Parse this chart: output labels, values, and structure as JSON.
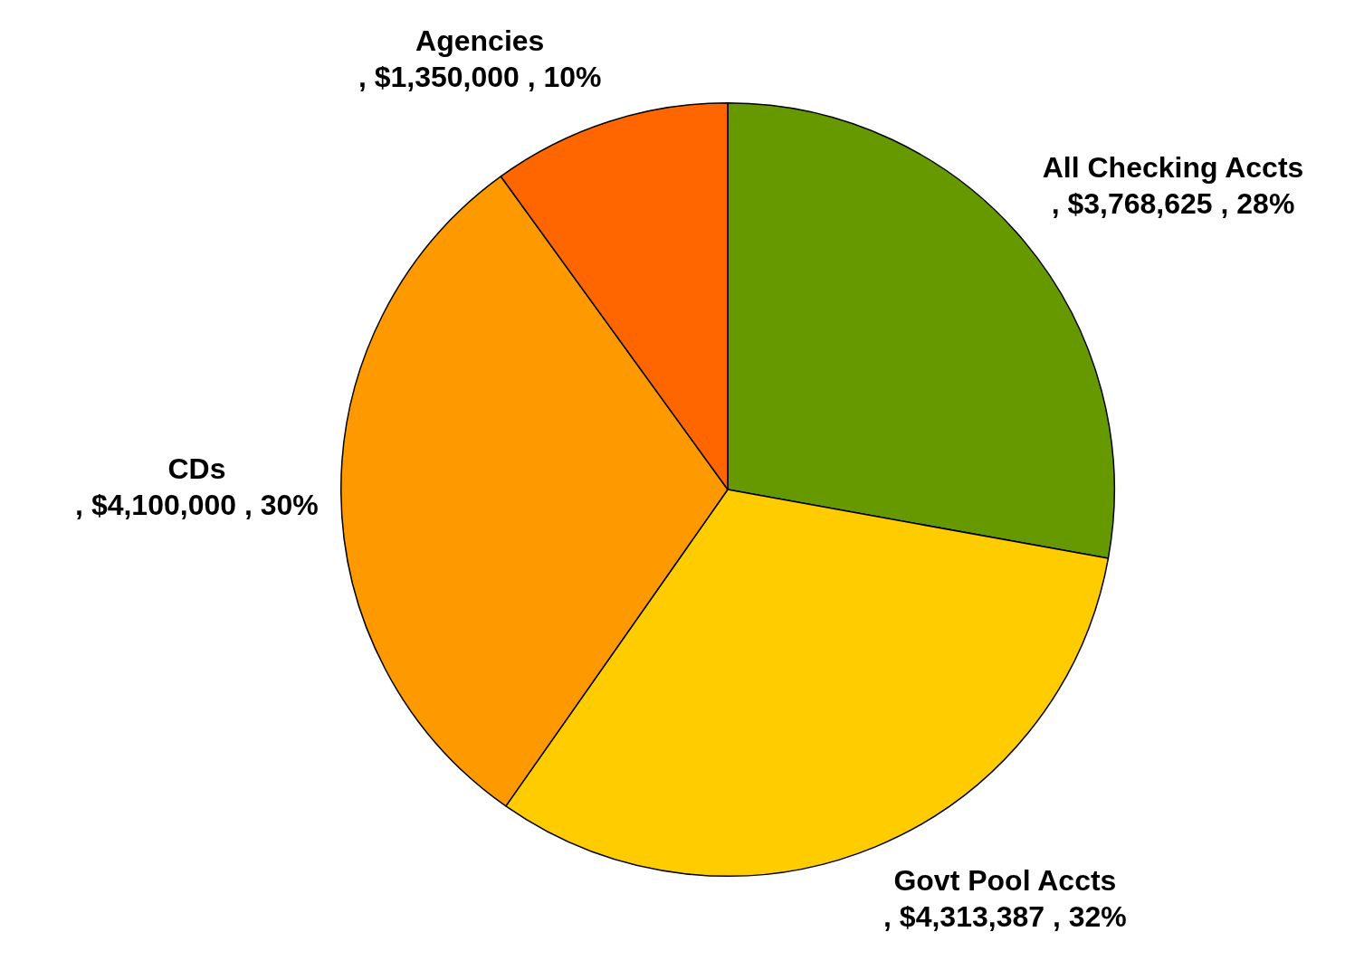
{
  "chart_data": {
    "type": "pie",
    "categories": [
      "All Checking Accts",
      "Govt Pool Accts",
      "CDs",
      "Agencies"
    ],
    "values": [
      3768625,
      4313387,
      4100000,
      1350000
    ],
    "colors": [
      "#669900",
      "#ffcc00",
      "#ff9900",
      "#ff6600"
    ],
    "value_labels": [
      ", $3,768,625 , 28%",
      ", $4,313,387 , 32%",
      ", $4,100,000 , 30%",
      ", $1,350,000 , 10%"
    ],
    "legend": false
  }
}
